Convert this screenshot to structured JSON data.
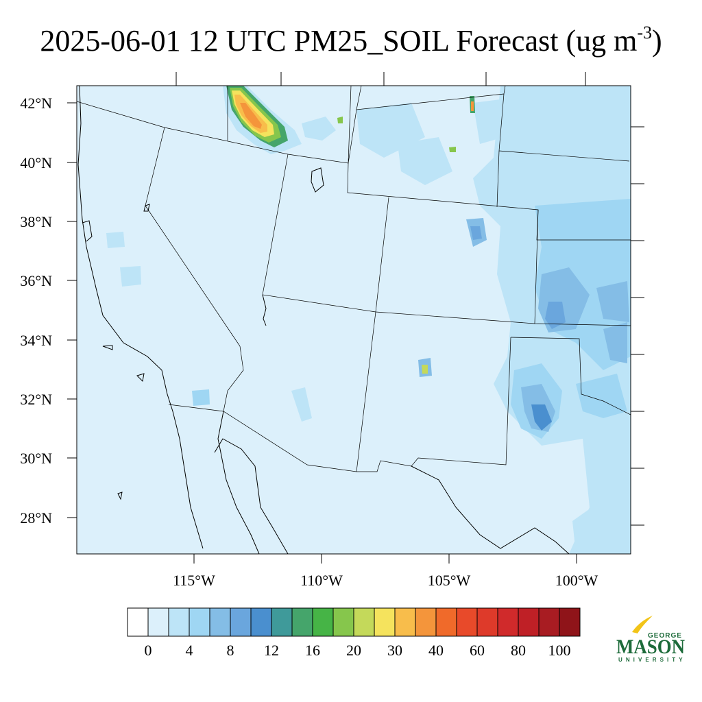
{
  "title": {
    "main": "2025-06-01 12 UTC PM25_SOIL Forecast (ug m",
    "superscript": "-3",
    "close": ")"
  },
  "map": {
    "lat_labels": [
      "42°N",
      "40°N",
      "38°N",
      "36°N",
      "34°N",
      "32°N",
      "30°N",
      "28°N"
    ],
    "lon_labels": [
      "115°W",
      "110°W",
      "105°W",
      "100°W"
    ],
    "background_color": "#dcf0fb",
    "border_color": "#000000"
  },
  "colorbar": {
    "colors": [
      "#ffffff",
      "#dcf0fb",
      "#bde4f7",
      "#9fd6f3",
      "#84bde6",
      "#6aa6dd",
      "#4a8fcf",
      "#3f9a9a",
      "#45a56b",
      "#46b446",
      "#86c64c",
      "#c4d95a",
      "#f5e35d",
      "#f8bd4b",
      "#f4953b",
      "#f06a2a",
      "#e84a2a",
      "#de3a2a",
      "#d02a2b",
      "#bf2026",
      "#a81c22",
      "#8f1419"
    ],
    "labels": [
      "0",
      "4",
      "8",
      "12",
      "16",
      "20",
      "30",
      "40",
      "60",
      "80",
      "100"
    ]
  },
  "logo": {
    "george": "GEORGE",
    "mason": "MASON",
    "university": "UNIVERSITY",
    "brand_green": "#1d6b3a",
    "brand_gold": "#f2c418"
  }
}
